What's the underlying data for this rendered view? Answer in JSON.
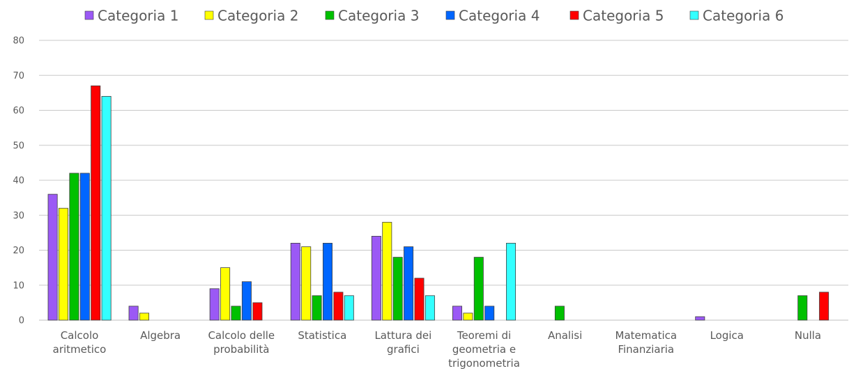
{
  "chart_data": {
    "type": "bar",
    "title": "",
    "xlabel": "",
    "ylabel": "",
    "ylim": [
      0,
      80
    ],
    "yticks": [
      0,
      10,
      20,
      30,
      40,
      50,
      60,
      70,
      80
    ],
    "grid": true,
    "legend_position": "top",
    "categories": [
      "Calcolo aritmetico",
      "Algebra",
      "Calcolo delle probabilità",
      "Statistica",
      "Lattura dei grafici",
      "Teoremi di geometria e trigonometria",
      "Analisi",
      "Matematica Finanziaria",
      "Logica",
      "Nulla"
    ],
    "category_lines": [
      [
        "Calcolo",
        "aritmetico"
      ],
      [
        "Algebra"
      ],
      [
        "Calcolo delle",
        "probabilità"
      ],
      [
        "Statistica"
      ],
      [
        "Lattura dei",
        "grafici"
      ],
      [
        "Teoremi di",
        "geometria e",
        "trigonometria"
      ],
      [
        "Analisi"
      ],
      [
        "Matematica",
        "Finanziaria"
      ],
      [
        "Logica"
      ],
      [
        "Nulla"
      ]
    ],
    "series": [
      {
        "name": "Categoria 1",
        "color": "#9B59F5",
        "values": [
          36,
          4,
          9,
          22,
          24,
          4,
          0,
          0,
          1,
          0
        ]
      },
      {
        "name": "Categoria 2",
        "color": "#FFFF00",
        "values": [
          32,
          2,
          15,
          21,
          28,
          2,
          0,
          0,
          0,
          0
        ]
      },
      {
        "name": "Categoria 3",
        "color": "#00C000",
        "values": [
          42,
          0,
          4,
          7,
          18,
          18,
          4,
          0,
          0,
          7
        ]
      },
      {
        "name": "Categoria 4",
        "color": "#0066FF",
        "values": [
          42,
          0,
          11,
          22,
          21,
          4,
          0,
          0,
          0,
          0
        ]
      },
      {
        "name": "Categoria 5",
        "color": "#FF0000",
        "values": [
          67,
          0,
          5,
          8,
          12,
          0,
          0,
          0,
          0,
          8
        ]
      },
      {
        "name": "Categoria 6",
        "color": "#33FFFF",
        "values": [
          64,
          0,
          0,
          7,
          7,
          22,
          0,
          0,
          0,
          0
        ]
      }
    ]
  }
}
